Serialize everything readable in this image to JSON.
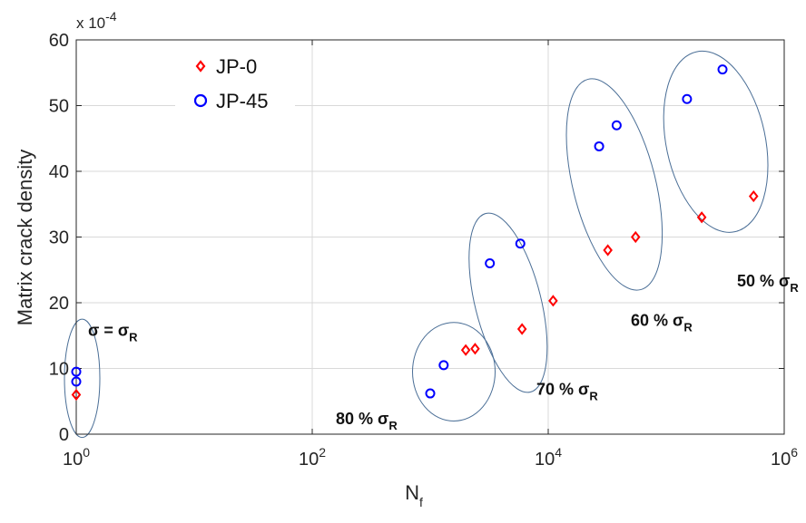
{
  "chart_data": {
    "type": "scatter",
    "title": "",
    "xlabel": "N",
    "xlabel_sub": "f",
    "ylabel": "Matrix crack density",
    "y_multiplier": "x 10",
    "y_multiplier_exp": "-4",
    "xscale": "log",
    "xlim": [
      1,
      1000000
    ],
    "ylim": [
      0,
      60
    ],
    "grid": true,
    "legend_position": "top-left",
    "x_ticks": [
      {
        "base": "10",
        "exp": "0",
        "value": 1
      },
      {
        "base": "10",
        "exp": "2",
        "value": 100
      },
      {
        "base": "10",
        "exp": "4",
        "value": 10000
      },
      {
        "base": "10",
        "exp": "6",
        "value": 1000000
      }
    ],
    "y_ticks": [
      "0",
      "10",
      "20",
      "30",
      "40",
      "50",
      "60"
    ],
    "series": [
      {
        "name": "JP-0",
        "marker": "diamond",
        "color": "#ff0000",
        "points": [
          {
            "x": 1,
            "y": 6
          },
          {
            "x": 2000,
            "y": 12.8
          },
          {
            "x": 2400,
            "y": 13
          },
          {
            "x": 6000,
            "y": 16
          },
          {
            "x": 11000,
            "y": 20.3
          },
          {
            "x": 32000,
            "y": 28
          },
          {
            "x": 55000,
            "y": 30
          },
          {
            "x": 200000,
            "y": 33
          },
          {
            "x": 550000,
            "y": 36.2
          }
        ]
      },
      {
        "name": "JP-45",
        "marker": "circle",
        "color": "#0000ff",
        "points": [
          {
            "x": 1,
            "y": 8
          },
          {
            "x": 1,
            "y": 9.5
          },
          {
            "x": 1000,
            "y": 6.2
          },
          {
            "x": 1300,
            "y": 10.5
          },
          {
            "x": 3200,
            "y": 26
          },
          {
            "x": 5800,
            "y": 29
          },
          {
            "x": 27000,
            "y": 43.8
          },
          {
            "x": 38000,
            "y": 47
          },
          {
            "x": 150000,
            "y": 51
          },
          {
            "x": 300000,
            "y": 55.5
          }
        ]
      }
    ],
    "groups": [
      {
        "label": "σ = σ",
        "sub": "R",
        "ellipse": {
          "cx_log": 0.05,
          "cy": 8.5,
          "rx_log": 0.15,
          "ry": 9,
          "angle": 0
        },
        "label_pos": {
          "x_log": 0.1,
          "y": 15
        }
      },
      {
        "label": "80 % σ",
        "sub": "R",
        "ellipse": {
          "cx_log": 3.2,
          "cy": 9.5,
          "rx_log": 0.35,
          "ry": 7.5,
          "angle": 0
        },
        "label_pos": {
          "x_log": 2.2,
          "y": 1.5
        }
      },
      {
        "label": "70 % σ",
        "sub": "R",
        "ellipse": {
          "cx_log": 3.66,
          "cy": 20,
          "rx_log": 0.28,
          "ry": 14,
          "angle": -14
        },
        "label_pos": {
          "x_log": 3.9,
          "y": 6
        }
      },
      {
        "label": "60 % σ",
        "sub": "R",
        "ellipse": {
          "cx_log": 4.56,
          "cy": 38,
          "rx_log": 0.35,
          "ry": 16.5,
          "angle": -14
        },
        "label_pos": {
          "x_log": 4.7,
          "y": 16.5
        }
      },
      {
        "label": "50 % σ",
        "sub": "R",
        "ellipse": {
          "cx_log": 5.42,
          "cy": 44.5,
          "rx_log": 0.42,
          "ry": 14,
          "angle": -12
        },
        "label_pos": {
          "x_log": 5.6,
          "y": 22.5
        }
      }
    ]
  },
  "colors": {
    "axis": "#262626",
    "grid": "#d9d9d9",
    "ellipse": "#4a6e96"
  }
}
